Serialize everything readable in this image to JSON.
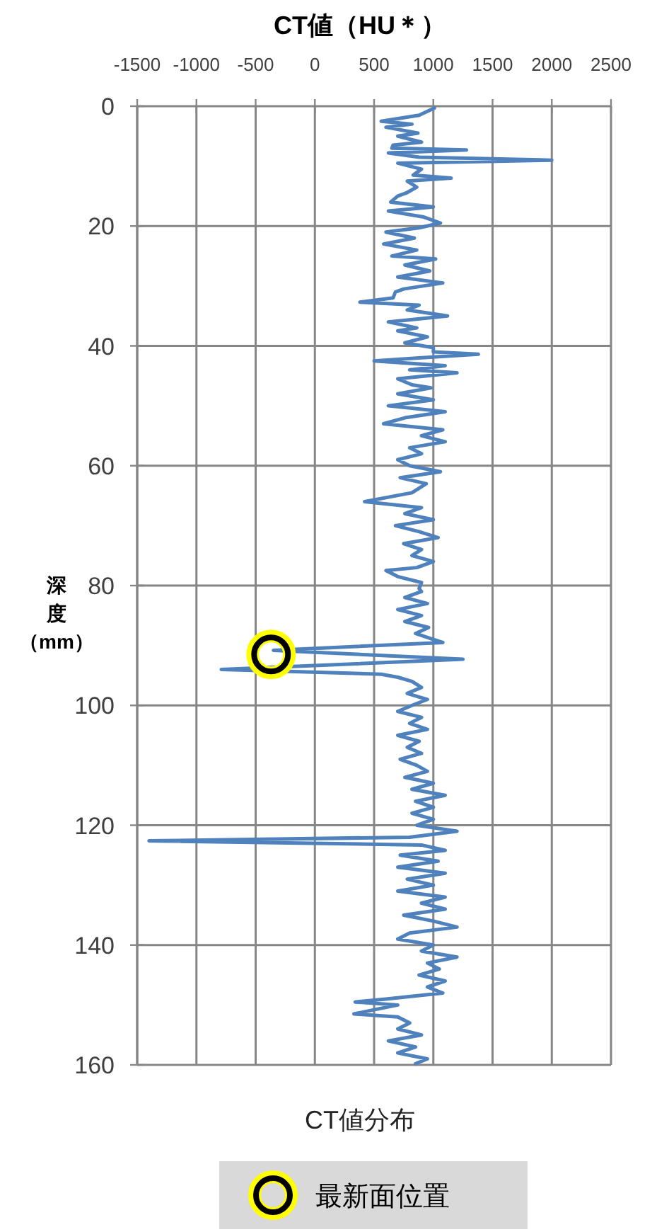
{
  "chart_data": {
    "type": "line",
    "title": "CT値分布",
    "xlabel": "CT値（HU＊）",
    "ylabel": "深度（mm）",
    "xlim": [
      -1500,
      2500
    ],
    "xticks": [
      -1500,
      -1000,
      -500,
      0,
      500,
      1000,
      1500,
      2000,
      2500
    ],
    "ylim": [
      160,
      0
    ],
    "yticks": [
      0,
      20,
      40,
      60,
      80,
      100,
      120,
      140,
      160
    ],
    "grid": true,
    "legend": "bottom",
    "series": [
      {
        "color": "#4f81bd",
        "x": [
          1010,
          880,
          560,
          820,
          600,
          870,
          700,
          900,
          660,
          650,
          1280,
          620,
          880,
          2000,
          700,
          900,
          830,
          1150,
          780,
          860,
          770,
          700,
          640,
          1000,
          620,
          920,
          1060,
          880,
          600,
          840,
          580,
          860,
          650,
          1020,
          760,
          970,
          700,
          1080,
          750,
          680,
          660,
          380,
          880,
          780,
          1120,
          620,
          860,
          700,
          950,
          760,
          1000,
          1000,
          1380,
          880,
          500,
          1100,
          800,
          1200,
          700,
          820,
          980,
          700,
          1000,
          620,
          860,
          1100,
          760,
          580,
          1080,
          900,
          1100,
          800,
          900,
          700,
          800,
          1060,
          720,
          940,
          820,
          420,
          900,
          760,
          1000,
          680,
          880,
          1040,
          750,
          900,
          820,
          1000,
          860,
          600,
          700,
          900,
          880,
          900,
          760,
          950,
          700,
          900,
          760,
          960,
          850,
          1000,
          1080,
          -350,
          1250,
          -790,
          560,
          700,
          820,
          900,
          780,
          950,
          820,
          700,
          900,
          800,
          950,
          700,
          880,
          780,
          900,
          720,
          860,
          950,
          760,
          1000,
          820,
          1100,
          850,
          1000,
          820,
          1000,
          860,
          1200,
          800,
          -1400,
          900,
          1100,
          720,
          1040,
          700,
          1100,
          780,
          1000,
          700,
          1100,
          900,
          1100,
          750,
          1000,
          1200,
          800,
          700,
          1000,
          900,
          1200,
          950,
          1050,
          880,
          1100,
          950,
          1080,
          600,
          340,
          700,
          500,
          330,
          700,
          800,
          700,
          900,
          620,
          850,
          700,
          950,
          850
        ],
        "values": [
          0.3,
          1.5,
          2.5,
          3,
          3.5,
          4.5,
          5,
          6,
          6.5,
          7,
          7.3,
          7.8,
          8.5,
          9,
          9.5,
          10.5,
          11.5,
          12,
          12.5,
          13.5,
          14.5,
          15,
          16,
          16.8,
          17.5,
          18.5,
          19.5,
          20.3,
          21,
          22,
          23,
          24,
          25,
          25.5,
          26.5,
          27.5,
          28.5,
          29.5,
          30.5,
          31,
          32,
          32.7,
          33.2,
          34,
          35,
          36,
          37,
          37.5,
          38.5,
          39.5,
          40.3,
          41,
          41.4,
          42,
          42.5,
          43.3,
          44,
          44.5,
          45.5,
          46.5,
          47,
          48,
          49,
          50,
          50.5,
          51,
          52,
          53,
          54,
          55,
          56,
          57,
          58,
          59,
          60,
          61,
          62,
          63,
          64.5,
          66,
          67,
          68,
          69,
          70,
          71,
          72,
          73,
          74,
          75,
          76,
          77,
          77.5,
          78.5,
          79.5,
          80.5,
          81,
          82,
          83,
          84,
          85,
          86,
          87,
          88,
          89,
          89.5,
          90.8,
          92.3,
          94,
          94.8,
          95.3,
          96,
          97,
          98,
          99,
          100,
          101,
          102,
          103,
          104,
          105,
          106,
          107,
          108,
          109,
          110,
          111,
          112,
          113,
          114,
          115,
          116,
          117,
          118,
          119,
          120,
          121,
          122,
          122.6,
          123.3,
          124.2,
          125,
          126,
          127,
          128,
          129,
          130,
          131,
          132,
          133,
          134,
          135,
          136,
          137,
          138,
          139,
          140,
          141,
          142,
          143,
          144,
          145,
          146,
          147,
          148,
          149,
          149.5,
          150,
          150.8,
          151.5,
          152,
          153,
          154,
          155,
          156,
          157,
          158,
          159,
          159.8
        ]
      },
      {
        "type": "scatter",
        "name": "最新面位置",
        "color": "#000000",
        "marker": "circle",
        "x": [
          -370
        ],
        "values": [
          91.5
        ]
      }
    ]
  }
}
